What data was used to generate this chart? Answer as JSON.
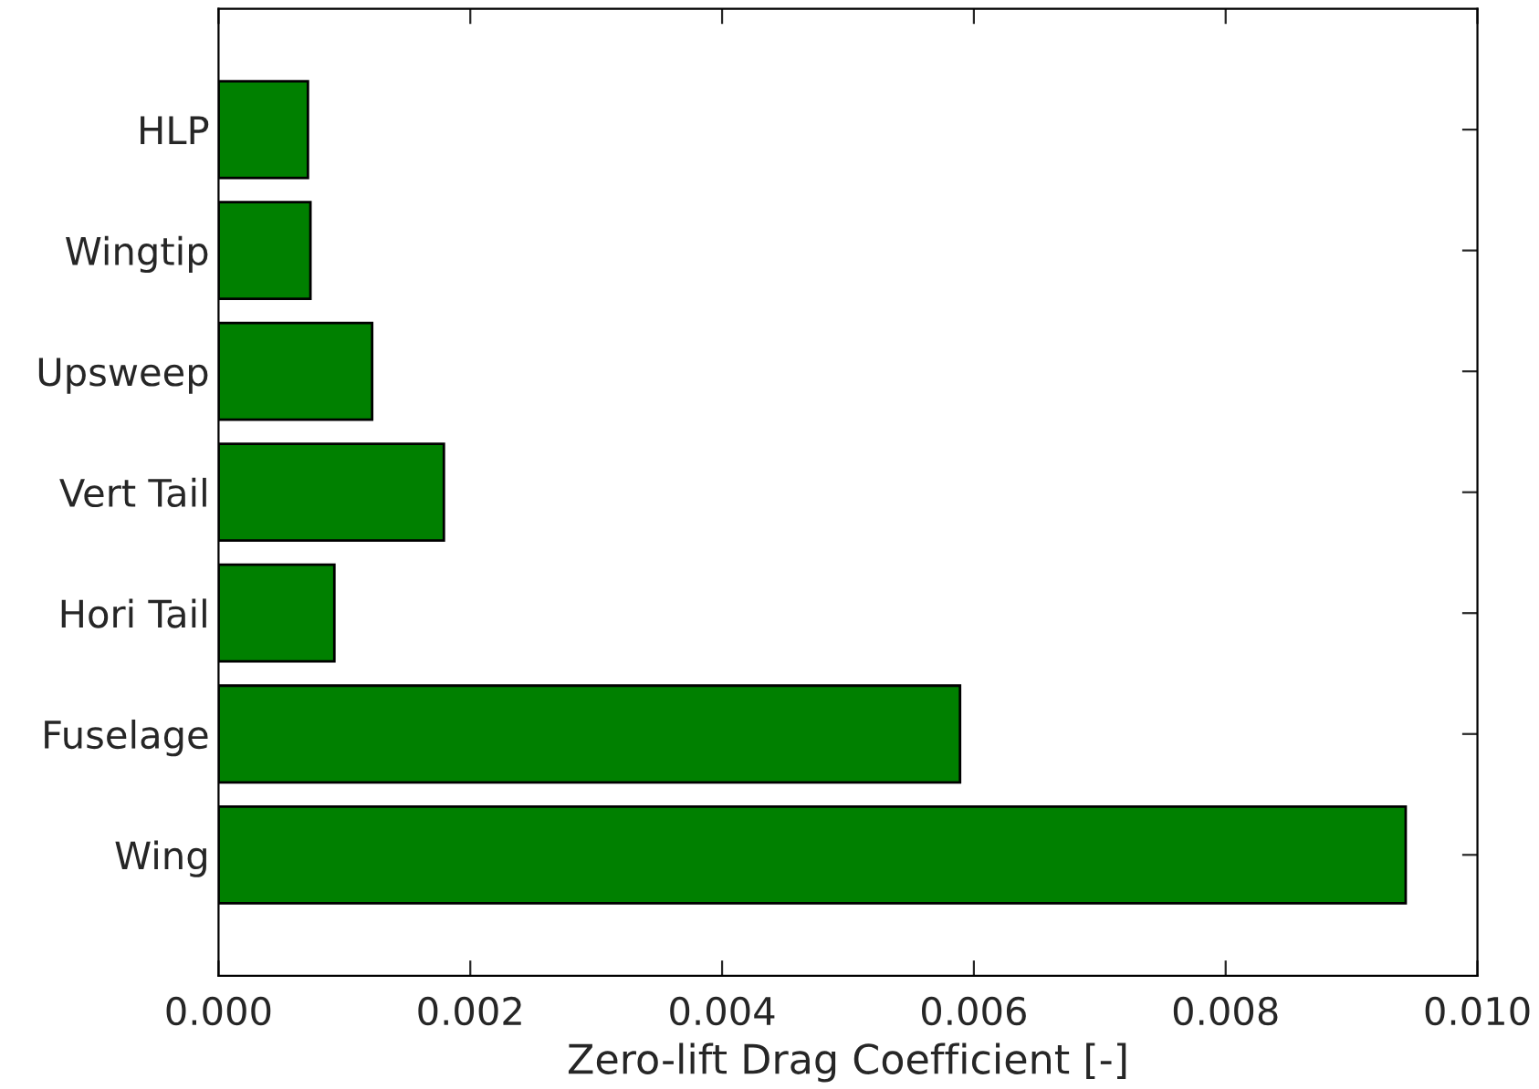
{
  "chart_data": {
    "type": "bar",
    "orientation": "horizontal",
    "xlabel": "Zero-lift Drag Coefficient [-]",
    "categories": [
      "HLP",
      "Wingtip",
      "Upsweep",
      "Vert Tail",
      "Hori Tail",
      "Fuselage",
      "Wing"
    ],
    "values": [
      0.00071,
      0.00073,
      0.00122,
      0.00179,
      0.00092,
      0.00589,
      0.00943
    ],
    "color": "#008000",
    "xlim": [
      0,
      0.01
    ],
    "xticks": [
      {
        "value": 0,
        "label": "0.000"
      },
      {
        "value": 0.002,
        "label": "0.002"
      },
      {
        "value": 0.004,
        "label": "0.004"
      },
      {
        "value": 0.006,
        "label": "0.006"
      },
      {
        "value": 0.008,
        "label": "0.008"
      },
      {
        "value": 0.01,
        "label": "0.010"
      }
    ],
    "grid": false,
    "legend": false
  }
}
